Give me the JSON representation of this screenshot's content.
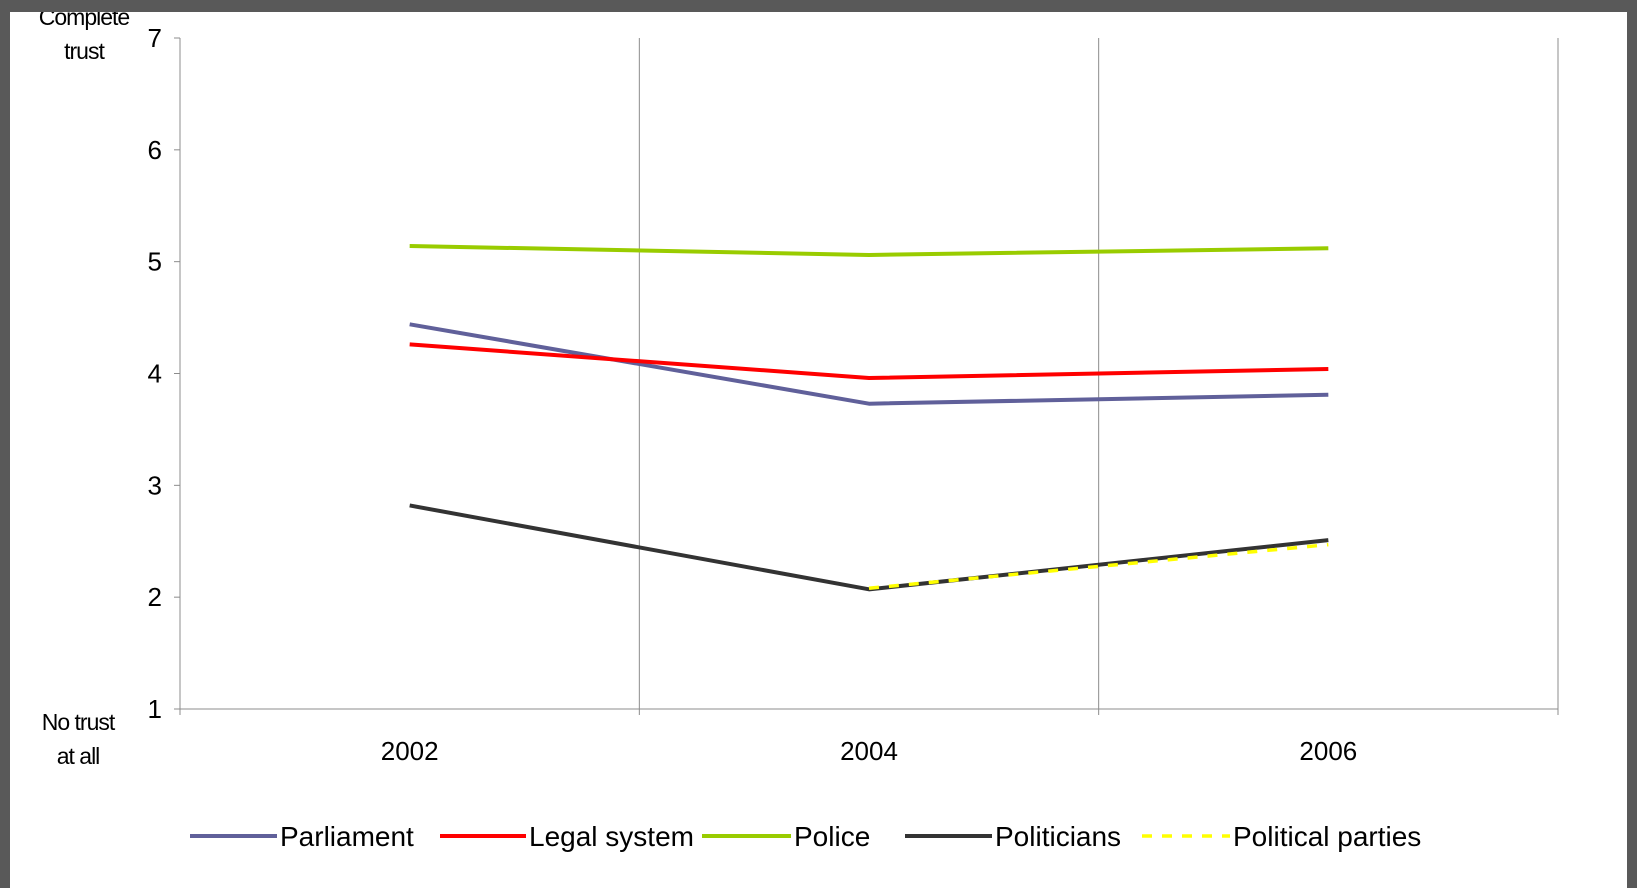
{
  "chart_data": {
    "type": "line",
    "title": "",
    "xlabel": "",
    "ylabel": "",
    "categories": [
      "2002",
      "2004",
      "2006"
    ],
    "ylim": [
      1,
      7
    ],
    "yticks": [
      1,
      2,
      3,
      4,
      5,
      6,
      7
    ],
    "y_top_label_line1": "Complete",
    "y_top_label_line2": "trust",
    "y_bottom_label_line1": "No trust",
    "y_bottom_label_line2": "at all",
    "grid": "vertical",
    "legend_position": "bottom",
    "series": [
      {
        "name": "Parliament",
        "values": [
          4.44,
          3.73,
          3.81
        ],
        "color": "#60609a",
        "dashed": false
      },
      {
        "name": "Legal system",
        "values": [
          4.26,
          3.96,
          4.04
        ],
        "color": "#ff0000",
        "dashed": false
      },
      {
        "name": "Police",
        "values": [
          5.14,
          5.06,
          5.12
        ],
        "color": "#99cc00",
        "dashed": false
      },
      {
        "name": "Politicians",
        "values": [
          2.82,
          2.07,
          2.51
        ],
        "color": "#333333",
        "dashed": false
      },
      {
        "name": "Political parties",
        "values": [
          null,
          2.08,
          2.47
        ],
        "color": "#ffff00",
        "dashed": true
      }
    ]
  }
}
